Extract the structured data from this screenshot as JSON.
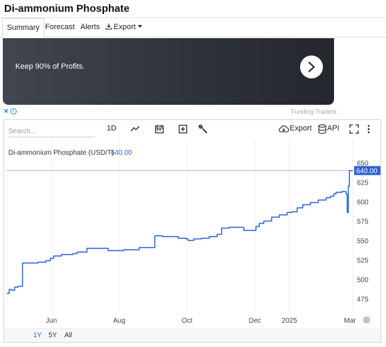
{
  "page": {
    "title": "Di-ammonium Phosphate"
  },
  "tabs": [
    {
      "label": "Summary",
      "active": true
    },
    {
      "label": "Forecast"
    },
    {
      "label": "Alerts"
    },
    {
      "label": "Export"
    }
  ],
  "ad": {
    "text": "Keep 90% of Profits.",
    "sponsor": "Funding Traders",
    "close_glyph": "✕",
    "info_glyph": "i"
  },
  "toolbar": {
    "search_placeholder": "Search...",
    "interval_label": "1D",
    "export_label": "Export",
    "api_label": "API",
    "icons": [
      "line-chart-icon",
      "calendar-icon",
      "add-icon",
      "settings-wrench-icon",
      "cloud-download-icon",
      "database-icon",
      "fullscreen-icon",
      "more-vertical-icon"
    ]
  },
  "chart_data": {
    "type": "line",
    "title": "Di-ammonium Phosphate (USD/T)",
    "last_value_label": "640.00",
    "last_value": 640,
    "ylim": [
      462,
      655
    ],
    "yticks": [
      475,
      500,
      525,
      550,
      575,
      600,
      625,
      650
    ],
    "xticks": [
      "Jun",
      "Aug",
      "Oct",
      "Dec",
      "2025",
      "Mar"
    ],
    "x_start": "2024-04-22",
    "x_end": "2025-02-27",
    "line_color": "#2a62d6",
    "series": [
      {
        "points": [
          [
            "2024-04-22",
            482
          ],
          [
            "2024-04-24",
            487
          ],
          [
            "2024-04-26",
            486
          ],
          [
            "2024-04-29",
            490
          ],
          [
            "2024-05-02",
            491
          ],
          [
            "2024-05-06",
            521
          ],
          [
            "2024-05-20",
            522
          ],
          [
            "2024-05-27",
            524
          ],
          [
            "2024-05-31",
            527
          ],
          [
            "2024-06-03",
            530
          ],
          [
            "2024-06-10",
            532
          ],
          [
            "2024-06-17",
            532
          ],
          [
            "2024-06-20",
            533
          ],
          [
            "2024-06-24",
            535
          ],
          [
            "2024-07-01",
            535
          ],
          [
            "2024-07-03",
            540
          ],
          [
            "2024-07-17",
            540
          ],
          [
            "2024-07-22",
            537
          ],
          [
            "2024-07-29",
            537
          ],
          [
            "2024-08-05",
            538
          ],
          [
            "2024-08-12",
            538
          ],
          [
            "2024-08-19",
            541
          ],
          [
            "2024-08-29",
            541
          ],
          [
            "2024-09-02",
            556
          ],
          [
            "2024-09-09",
            555
          ],
          [
            "2024-09-16",
            555
          ],
          [
            "2024-09-23",
            553
          ],
          [
            "2024-09-30",
            552
          ],
          [
            "2024-10-02",
            550
          ],
          [
            "2024-10-07",
            552
          ],
          [
            "2024-10-14",
            553
          ],
          [
            "2024-10-21",
            555
          ],
          [
            "2024-10-28",
            558
          ],
          [
            "2024-11-01",
            566
          ],
          [
            "2024-11-08",
            567
          ],
          [
            "2024-11-18",
            567
          ],
          [
            "2024-11-21",
            563
          ],
          [
            "2024-11-28",
            563
          ],
          [
            "2024-12-02",
            568
          ],
          [
            "2024-12-05",
            572
          ],
          [
            "2024-12-09",
            575
          ],
          [
            "2024-12-16",
            580
          ],
          [
            "2024-12-23",
            583
          ],
          [
            "2024-12-30",
            586
          ],
          [
            "2025-01-03",
            587
          ],
          [
            "2025-01-08",
            592
          ],
          [
            "2025-01-13",
            596
          ],
          [
            "2025-01-20",
            599
          ],
          [
            "2025-01-27",
            602
          ],
          [
            "2025-02-03",
            605
          ],
          [
            "2025-02-07",
            607
          ],
          [
            "2025-02-10",
            610
          ],
          [
            "2025-02-12",
            612
          ],
          [
            "2025-02-17",
            613
          ],
          [
            "2025-02-20",
            613
          ],
          [
            "2025-02-21",
            610
          ],
          [
            "2025-02-22",
            586
          ],
          [
            "2025-02-23",
            620
          ],
          [
            "2025-02-24",
            640
          ],
          [
            "2025-02-27",
            640
          ]
        ]
      }
    ]
  },
  "range_buttons": [
    {
      "label": "1Y",
      "active": true
    },
    {
      "label": "5Y"
    },
    {
      "label": "All"
    }
  ]
}
